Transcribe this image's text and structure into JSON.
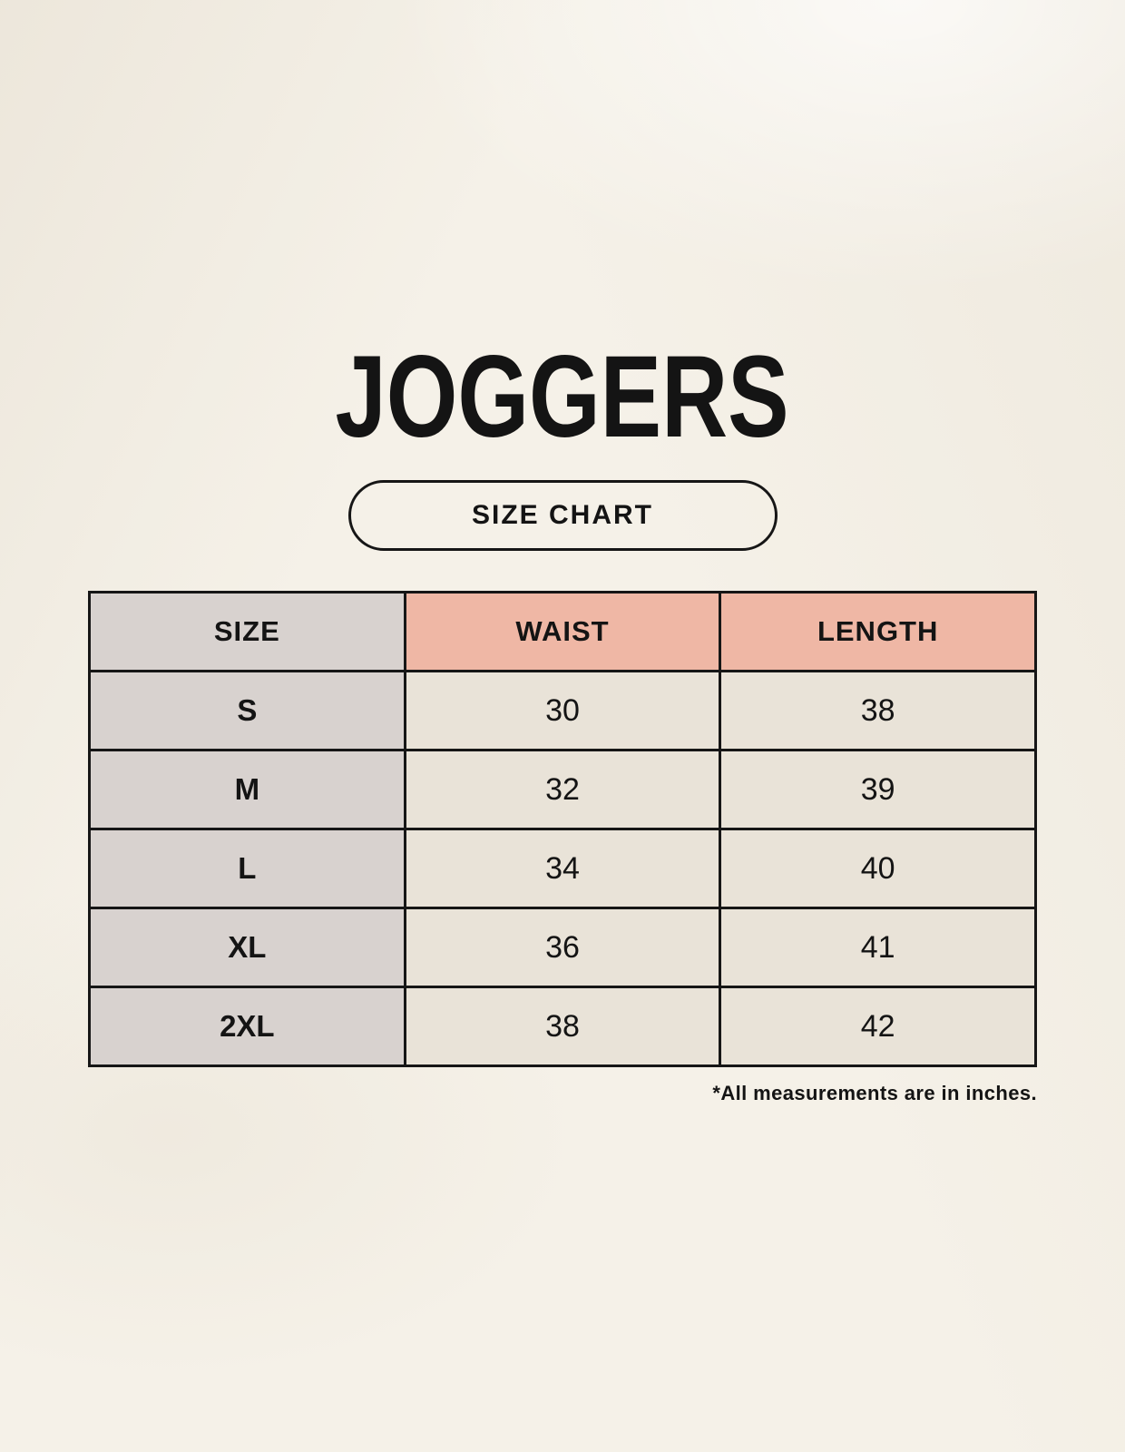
{
  "page": {
    "title": "JOGGERS",
    "badge_label": "SIZE CHART",
    "footnote": "*All measurements are in inches."
  },
  "chart_data": {
    "type": "table",
    "title": "JOGGERS",
    "subtitle": "SIZE CHART",
    "columns": [
      "SIZE",
      "WAIST",
      "LENGTH"
    ],
    "rows": [
      [
        "S",
        "30",
        "38"
      ],
      [
        "M",
        "32",
        "39"
      ],
      [
        "L",
        "34",
        "40"
      ],
      [
        "XL",
        "36",
        "41"
      ],
      [
        "2XL",
        "38",
        "42"
      ]
    ],
    "note": "*All measurements are in inches.",
    "units": "inches",
    "layout": {
      "grid": "on",
      "header_fill_first_col": "gray",
      "header_fill_other_cols": "salmon"
    }
  },
  "colors": {
    "background": "#f5f1e8",
    "header_accent": "#efb7a5",
    "size_column": "#d8d2cf",
    "cell": "#e9e3d8",
    "border": "#161616",
    "text": "#141414"
  }
}
